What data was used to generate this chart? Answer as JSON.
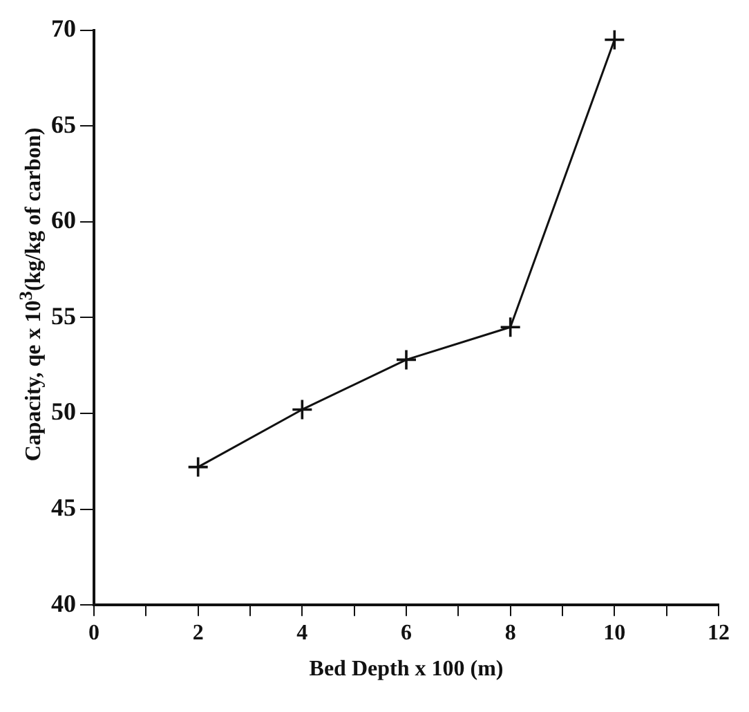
{
  "chart_data": {
    "type": "line",
    "xlabel": "Bed Depth x 100 (m)",
    "ylabel": "Capacity, qe x 10$^{3}$(kg/kg of carbon)",
    "x": [
      2,
      4,
      6,
      8,
      10
    ],
    "series": [
      {
        "color": "#111111",
        "values": [
          47.2,
          50.2,
          52.8,
          54.5,
          69.5
        ]
      }
    ],
    "xlim": [
      0,
      12
    ],
    "xticks": [
      0,
      {
        "value": 1,
        "label": null
      },
      2,
      {
        "value": 3,
        "label": null
      },
      4,
      {
        "value": 5,
        "label": null
      },
      6,
      {
        "value": 7,
        "label": null
      },
      8,
      {
        "value": 9,
        "label": null
      },
      10,
      {
        "value": 11,
        "label": null
      },
      12
    ],
    "ylim": [
      40,
      70
    ],
    "yticks": [
      40,
      45,
      50,
      55,
      60,
      65,
      70
    ],
    "marker": "cross",
    "line_style": "solid",
    "grid": false,
    "legend": false
  }
}
